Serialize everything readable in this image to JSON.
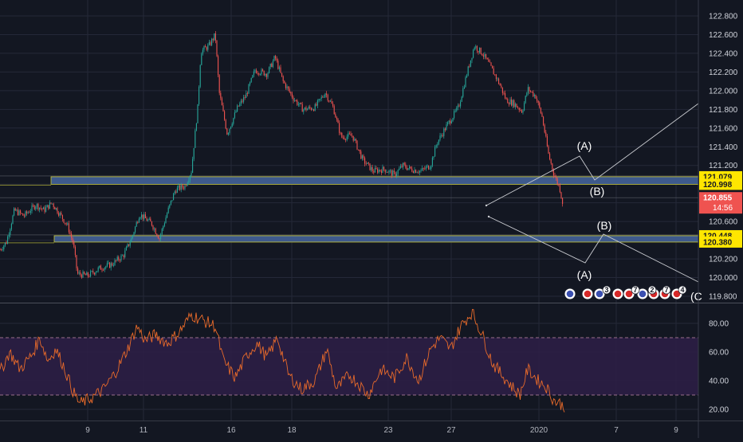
{
  "colors": {
    "background": "#131722",
    "grid": "#242838",
    "up": "#26a69a",
    "down": "#ef5350",
    "zone_fill": "#3e5a8c",
    "zone_border": "#c8c83a",
    "rsi_line": "#e86a2a",
    "rsi_band": "#2e1f46",
    "rsi_level": "#9a6f8a",
    "wave_line": "#c9cbd0",
    "price_tag": "#ef5350",
    "level_tag": "#ffe600"
  },
  "chart_data": [
    {
      "type": "candlestick",
      "title": "",
      "y_axis": {
        "ticks": [
          "122.800",
          "122.600",
          "122.400",
          "122.200",
          "122.000",
          "121.800",
          "121.600",
          "121.400",
          "121.200",
          "121.000",
          "120.800",
          "120.600",
          "120.400",
          "120.200",
          "120.000",
          "119.800"
        ],
        "range": [
          119.74,
          122.86
        ]
      },
      "x_axis": {
        "ticks": [
          "9",
          "11",
          "16",
          "18",
          "23",
          "27",
          "2020",
          "7",
          "9"
        ]
      },
      "path_points": [
        [
          0,
          120.3
        ],
        [
          8,
          120.38
        ],
        [
          18,
          120.72
        ],
        [
          30,
          120.66
        ],
        [
          45,
          120.78
        ],
        [
          55,
          120.72
        ],
        [
          65,
          120.8
        ],
        [
          75,
          120.68
        ],
        [
          85,
          120.55
        ],
        [
          92,
          120.36
        ],
        [
          97,
          120.04
        ],
        [
          110,
          120.02
        ],
        [
          125,
          120.1
        ],
        [
          140,
          120.14
        ],
        [
          155,
          120.24
        ],
        [
          165,
          120.42
        ],
        [
          175,
          120.68
        ],
        [
          190,
          120.58
        ],
        [
          200,
          120.42
        ],
        [
          210,
          120.7
        ],
        [
          220,
          120.94
        ],
        [
          232,
          120.98
        ],
        [
          240,
          121.14
        ],
        [
          248,
          121.82
        ],
        [
          252,
          122.42
        ],
        [
          262,
          122.48
        ],
        [
          270,
          122.6
        ],
        [
          275,
          121.98
        ],
        [
          285,
          121.54
        ],
        [
          298,
          121.82
        ],
        [
          308,
          121.94
        ],
        [
          320,
          122.22
        ],
        [
          335,
          122.18
        ],
        [
          345,
          122.36
        ],
        [
          355,
          122.1
        ],
        [
          368,
          121.92
        ],
        [
          380,
          121.8
        ],
        [
          395,
          121.82
        ],
        [
          408,
          121.98
        ],
        [
          418,
          121.82
        ],
        [
          428,
          121.5
        ],
        [
          442,
          121.52
        ],
        [
          455,
          121.26
        ],
        [
          468,
          121.14
        ],
        [
          482,
          121.16
        ],
        [
          495,
          121.1
        ],
        [
          505,
          121.2
        ],
        [
          515,
          121.16
        ],
        [
          528,
          121.14
        ],
        [
          540,
          121.2
        ],
        [
          548,
          121.44
        ],
        [
          560,
          121.62
        ],
        [
          575,
          121.82
        ],
        [
          585,
          122.16
        ],
        [
          595,
          122.48
        ],
        [
          605,
          122.4
        ],
        [
          615,
          122.26
        ],
        [
          625,
          122.1
        ],
        [
          635,
          121.9
        ],
        [
          645,
          121.86
        ],
        [
          655,
          121.78
        ],
        [
          662,
          122.02
        ],
        [
          672,
          121.94
        ],
        [
          680,
          121.72
        ],
        [
          688,
          121.32
        ],
        [
          695,
          121.1
        ],
        [
          702,
          120.96
        ],
        [
          706,
          120.79
        ]
      ],
      "zones": [
        {
          "top": 121.079,
          "bottom": 120.998,
          "start_x": 64
        },
        {
          "top": 120.448,
          "bottom": 120.38,
          "start_x": 68
        }
      ],
      "level_labels": [
        "121.079",
        "120.998",
        "120.448",
        "120.380"
      ],
      "last_price": "120.855",
      "countdown": "14:56",
      "wave_labels": [
        "(A)",
        "(B)",
        "(B)",
        "(A)"
      ],
      "event_flags": [
        "3",
        "7",
        "2",
        "7",
        "4"
      ],
      "trailing_label": "(C"
    },
    {
      "type": "line",
      "title": "",
      "y_axis": {
        "ticks": [
          "80.00",
          "60.00",
          "40.00",
          "20.00"
        ],
        "range": [
          14,
          91
        ]
      },
      "band": [
        30,
        70
      ],
      "path_points": [
        [
          0,
          46
        ],
        [
          12,
          60
        ],
        [
          25,
          48
        ],
        [
          40,
          58
        ],
        [
          50,
          70
        ],
        [
          60,
          54
        ],
        [
          70,
          62
        ],
        [
          80,
          50
        ],
        [
          92,
          32
        ],
        [
          100,
          24
        ],
        [
          115,
          28
        ],
        [
          130,
          34
        ],
        [
          145,
          46
        ],
        [
          160,
          62
        ],
        [
          172,
          78
        ],
        [
          182,
          68
        ],
        [
          195,
          72
        ],
        [
          210,
          66
        ],
        [
          225,
          74
        ],
        [
          240,
          86
        ],
        [
          255,
          82
        ],
        [
          270,
          78
        ],
        [
          280,
          54
        ],
        [
          295,
          42
        ],
        [
          310,
          58
        ],
        [
          322,
          66
        ],
        [
          335,
          56
        ],
        [
          348,
          70
        ],
        [
          362,
          44
        ],
        [
          378,
          34
        ],
        [
          395,
          40
        ],
        [
          410,
          62
        ],
        [
          422,
          34
        ],
        [
          438,
          44
        ],
        [
          450,
          38
        ],
        [
          462,
          30
        ],
        [
          478,
          48
        ],
        [
          495,
          42
        ],
        [
          510,
          56
        ],
        [
          525,
          40
        ],
        [
          540,
          62
        ],
        [
          552,
          70
        ],
        [
          565,
          62
        ],
        [
          578,
          78
        ],
        [
          592,
          88
        ],
        [
          605,
          72
        ],
        [
          618,
          52
        ],
        [
          630,
          44
        ],
        [
          642,
          36
        ],
        [
          652,
          30
        ],
        [
          662,
          48
        ],
        [
          675,
          40
        ],
        [
          685,
          36
        ],
        [
          695,
          26
        ],
        [
          703,
          24
        ],
        [
          708,
          21
        ]
      ]
    }
  ]
}
